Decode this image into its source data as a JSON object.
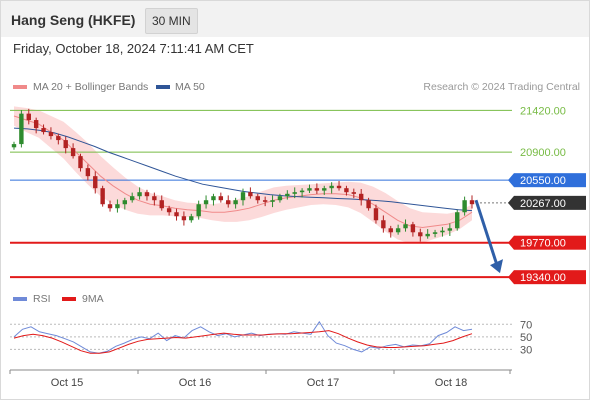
{
  "header": {
    "instrument": "Hang Seng (HKFE)",
    "timeframe": "30 MIN",
    "datetime": "Friday, October 18, 2024 7:11:41 AM CET"
  },
  "legend": {
    "ma20_label": "MA 20 + Bollinger Bands",
    "ma50_label": "MA 50",
    "attribution": "Research © 2024 Trading Central",
    "rsi_label": "RSI",
    "rsi_ma_label": "9MA"
  },
  "colors": {
    "ma20": "#f08a8a",
    "ma50": "#2f5597",
    "bollinger": "#fbd3d3",
    "candle_up": "#2e8b2e",
    "candle_down": "#b22222",
    "resistance": "#77bb44",
    "pivot": "#2f6fdb",
    "support": "#e21a1a",
    "arrow": "#2f5fa8",
    "rsi": "#6f8ad8",
    "rsi_ma": "#e21a1a"
  },
  "chart_data": {
    "type": "candlestick",
    "price_range": [
      19180,
      21600
    ],
    "x_ticks": [
      "Oct 15",
      "Oct 16",
      "Oct 17",
      "Oct 18"
    ],
    "levels": [
      {
        "value": 21420.0,
        "label": "21420.00",
        "kind": "resistance"
      },
      {
        "value": 20900.0,
        "label": "20900.00",
        "kind": "resistance"
      },
      {
        "value": 20550.0,
        "label": "20550.00",
        "kind": "pivot"
      },
      {
        "value": 20267.0,
        "label": "20267.00",
        "kind": "last"
      },
      {
        "value": 19770.0,
        "label": "19770.00",
        "kind": "support"
      },
      {
        "value": 19340.0,
        "label": "19340.00",
        "kind": "support"
      }
    ],
    "rsi_levels": [
      70,
      50,
      30
    ],
    "rsi_range": [
      10,
      80
    ],
    "projection": {
      "from": 20300,
      "to": 19340
    },
    "closes": [
      21000,
      21380,
      21300,
      21200,
      21150,
      21100,
      21050,
      20950,
      20850,
      20700,
      20600,
      20450,
      20250,
      20200,
      20250,
      20300,
      20350,
      20400,
      20350,
      20300,
      20200,
      20150,
      20100,
      20050,
      20100,
      20250,
      20300,
      20350,
      20300,
      20250,
      20300,
      20400,
      20350,
      20300,
      20280,
      20300,
      20350,
      20380,
      20400,
      20420,
      20450,
      20420,
      20450,
      20480,
      20450,
      20400,
      20380,
      20300,
      20200,
      20050,
      19950,
      19900,
      19950,
      20000,
      19900,
      19850,
      19880,
      19900,
      19920,
      19950,
      20150,
      20300,
      20250
    ],
    "ma20": [
      21350,
      21300,
      21250,
      21150,
      21050,
      20900,
      20750,
      20600,
      20480,
      20380,
      20300,
      20250,
      20230,
      20200,
      20180,
      20170,
      20150,
      20150,
      20170,
      20200,
      20250,
      20300,
      20330,
      20350,
      20370,
      20380,
      20380,
      20370,
      20330,
      20250,
      20150,
      20050,
      19980,
      19960,
      19980,
      20000,
      20050,
      20150
    ],
    "ma50": [
      21200,
      21190,
      21170,
      21140,
      21090,
      21030,
      20970,
      20900,
      20840,
      20780,
      20720,
      20660,
      20600,
      20550,
      20500,
      20470,
      20440,
      20410,
      20390,
      20370,
      20355,
      20345,
      20338,
      20330,
      20322,
      20315,
      20305,
      20295,
      20280,
      20260,
      20240,
      20220,
      20200,
      20180,
      20170
    ],
    "rsi": [
      50,
      62,
      66,
      58,
      55,
      52,
      47,
      42,
      34,
      26,
      24,
      27,
      35,
      40,
      46,
      50,
      47,
      56,
      44,
      52,
      48,
      60,
      66,
      58,
      52,
      55,
      50,
      53,
      56,
      52,
      54,
      55,
      54,
      58,
      56,
      54,
      74,
      52,
      40,
      36,
      30,
      26,
      34,
      32,
      36,
      38,
      34,
      37,
      36,
      39,
      52,
      57,
      66,
      60,
      62
    ],
    "rsi_ma": [
      48,
      52,
      54,
      52,
      48,
      42,
      35,
      28,
      24,
      24,
      26,
      32,
      38,
      43,
      46,
      47,
      48,
      49,
      48,
      50,
      52,
      54,
      56,
      54,
      53,
      53,
      53,
      54,
      55,
      55,
      56,
      57,
      58,
      60,
      55,
      48,
      42,
      37,
      34,
      33,
      33,
      34,
      35,
      36,
      38,
      40,
      44,
      50,
      55
    ]
  }
}
